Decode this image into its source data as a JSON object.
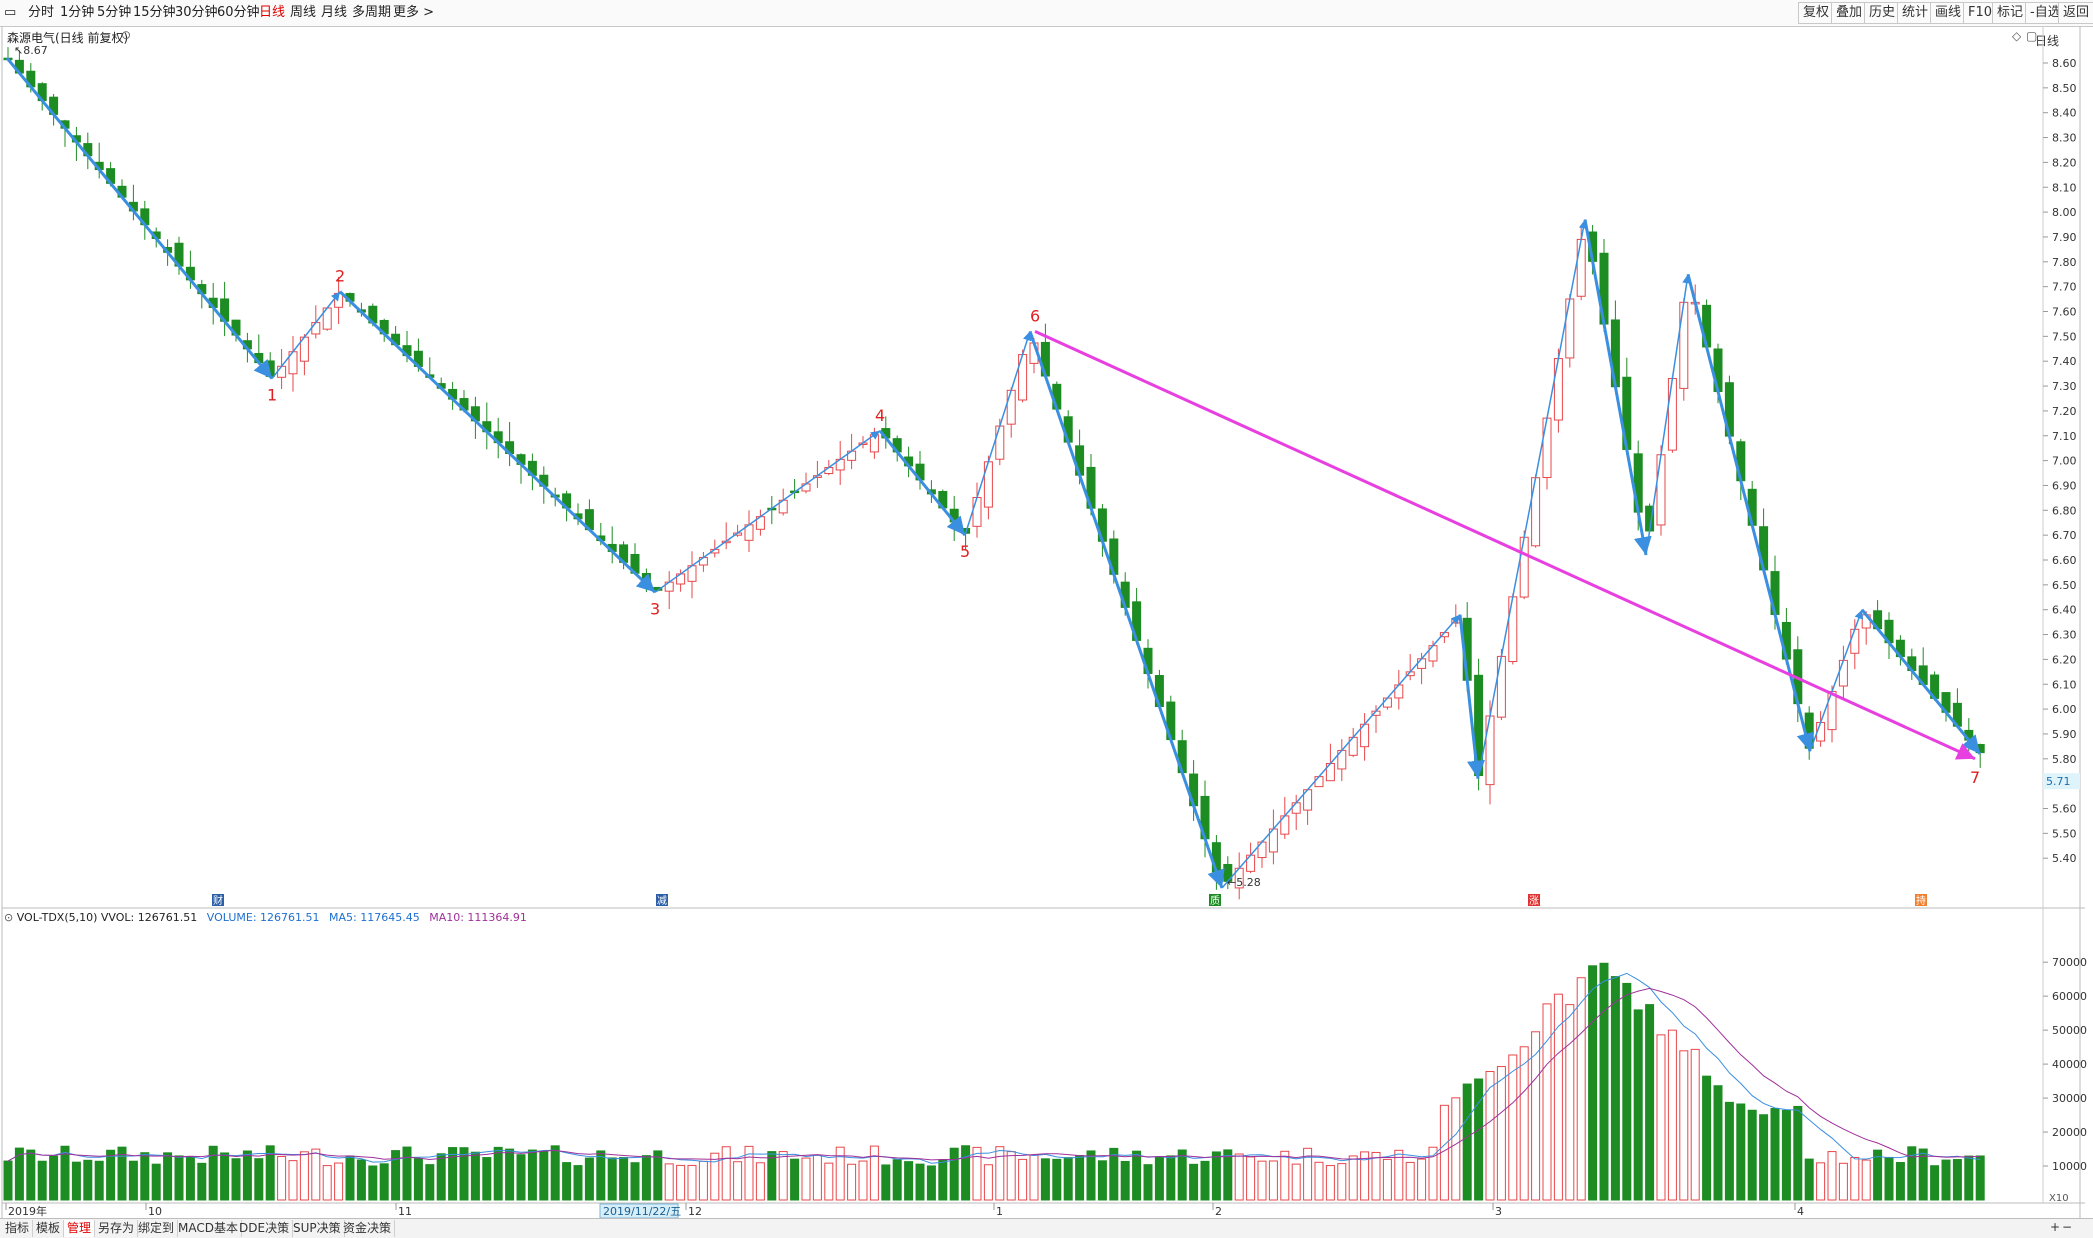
{
  "toolbar": {
    "periods": [
      "分时",
      "1分钟",
      "5分钟",
      "15分钟",
      "30分钟",
      "60分钟",
      "日线",
      "周线",
      "月线",
      "多周期",
      "更多 >"
    ],
    "active_period": "日线",
    "right_buttons": [
      "复权",
      "叠加",
      "历史",
      "统计",
      "画线",
      "F10",
      "标记",
      "-自选",
      "返回"
    ]
  },
  "main": {
    "title": "森源电气(日线 前复权)",
    "high_label": "8.67",
    "low_label": "5.28",
    "current_price": "5.71",
    "period_label": "日线",
    "price_axis": [
      "8.60",
      "8.50",
      "8.40",
      "8.30",
      "8.20",
      "8.10",
      "8.00",
      "7.90",
      "7.80",
      "7.70",
      "7.60",
      "7.50",
      "7.40",
      "7.30",
      "7.20",
      "7.10",
      "7.00",
      "6.90",
      "6.80",
      "6.70",
      "6.60",
      "6.50",
      "6.40",
      "6.30",
      "6.20",
      "6.10",
      "6.00",
      "5.90",
      "5.80",
      "5.70",
      "5.60",
      "5.50",
      "5.40"
    ],
    "wave_labels": [
      "1",
      "2",
      "3",
      "4",
      "5",
      "6",
      "7"
    ],
    "markers": [
      "财",
      "减",
      "质",
      "涨",
      "持"
    ]
  },
  "volume": {
    "indicator": "VOL-TDX(5,10)",
    "vvol": "VVOL: 126761.51",
    "volume": "VOLUME: 126761.51",
    "ma5": "MA5: 117645.45",
    "ma10": "MA10: 111364.91",
    "axis": [
      "70000",
      "60000",
      "50000",
      "40000",
      "30000",
      "20000",
      "10000"
    ],
    "unit": "X10"
  },
  "date_axis": {
    "labels": [
      "2019年",
      "10",
      "11",
      "12",
      "1",
      "2",
      "3",
      "4"
    ],
    "cursor_date": "2019/11/22/五"
  },
  "bottom_tabs": [
    "指标",
    "模板",
    "管理",
    "另存为",
    "绑定到",
    "MACD基本",
    "DDE决策",
    "SUP决策",
    "资金决策"
  ],
  "active_tab": "管理",
  "colors": {
    "up": "#e8474a",
    "down": "#1d8c22",
    "wave": "#3a8fe0",
    "trend": "#e83fe0",
    "ma5": "#3a8fe0",
    "ma10": "#a0309a"
  }
}
